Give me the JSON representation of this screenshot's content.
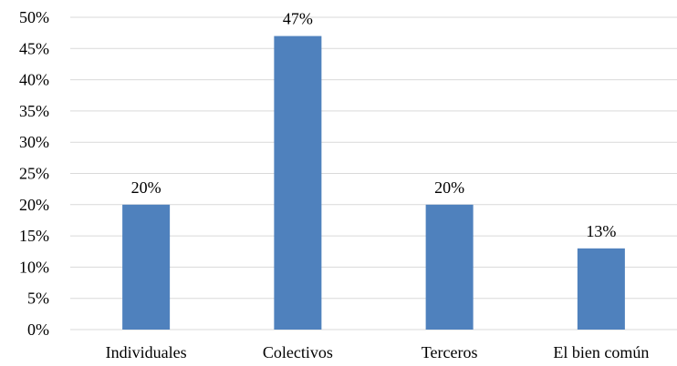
{
  "chart_data": {
    "type": "bar",
    "title": "",
    "xlabel": "",
    "ylabel": "",
    "categories": [
      "Individuales",
      "Colectivos",
      "Terceros",
      "El bien común"
    ],
    "values": [
      20,
      47,
      20,
      13
    ],
    "value_labels": [
      "20%",
      "47%",
      "20%",
      "13%"
    ],
    "ylim": [
      0,
      50
    ],
    "y_ticks": [
      0,
      5,
      10,
      15,
      20,
      25,
      30,
      35,
      40,
      45,
      50
    ],
    "y_tick_labels": [
      "0%",
      "5%",
      "10%",
      "15%",
      "20%",
      "25%",
      "30%",
      "35%",
      "40%",
      "45%",
      "50%"
    ],
    "grid": true,
    "legend": "none",
    "bar_color": "#4f81bd"
  }
}
